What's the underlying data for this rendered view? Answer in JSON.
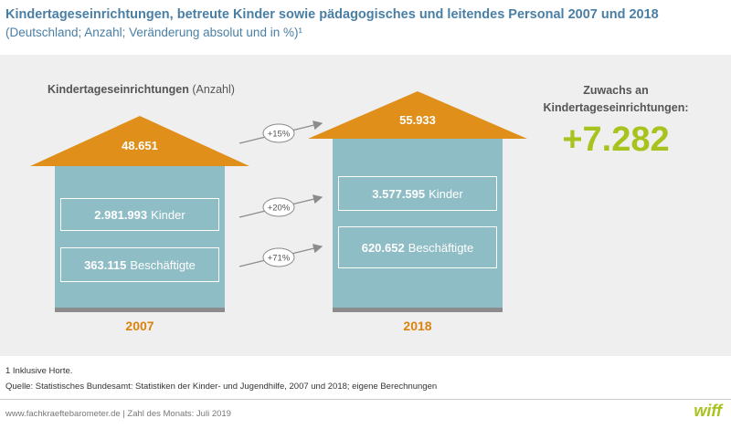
{
  "header": {
    "title": "Kindertageseinrichtungen, betreute Kinder sowie pädagogisches und leitendes Personal 2007 und 2018",
    "subtitle": "(Deutschland; Anzahl; Veränderung absolut und in %)¹"
  },
  "section_label": {
    "bold": "Kindertageseinrichtungen",
    "light": "(Anzahl)"
  },
  "aside": {
    "label": "Zuwachs an Kindertageseinrichtungen:",
    "value": "+7.282"
  },
  "chart_data": {
    "type": "table",
    "categories": [
      "2007",
      "2018"
    ],
    "series": [
      {
        "name": "Kindertageseinrichtungen",
        "values": [
          48651,
          55933
        ],
        "labels": [
          "48.651",
          "55.933"
        ],
        "unit": ""
      },
      {
        "name": "Kinder",
        "values": [
          2981993,
          3577595
        ],
        "labels": [
          "2.981.993",
          "3.577.595"
        ],
        "unit": "Kinder"
      },
      {
        "name": "Beschäftigte",
        "values": [
          363115,
          620652
        ],
        "labels": [
          "363.115",
          "620.652"
        ],
        "unit": "Beschäftigte"
      }
    ],
    "changes": [
      "+15%",
      "+20%",
      "+71%"
    ],
    "colors": {
      "roof": "#e08f1a",
      "house": "#8fbdc6",
      "year": "#d9820f",
      "accent": "#a7c31d"
    }
  },
  "notes": {
    "footnote": "1  Inklusive Horte.",
    "source": "Quelle: Statistisches Bundesamt: Statistiken der Kinder- und Jugendhilfe, 2007 und 2018; eigene Berechnungen"
  },
  "footer": {
    "text": "www.fachkraeftebarometer.de | Zahl des Monats: Juli 2019",
    "logo": "wiff"
  }
}
